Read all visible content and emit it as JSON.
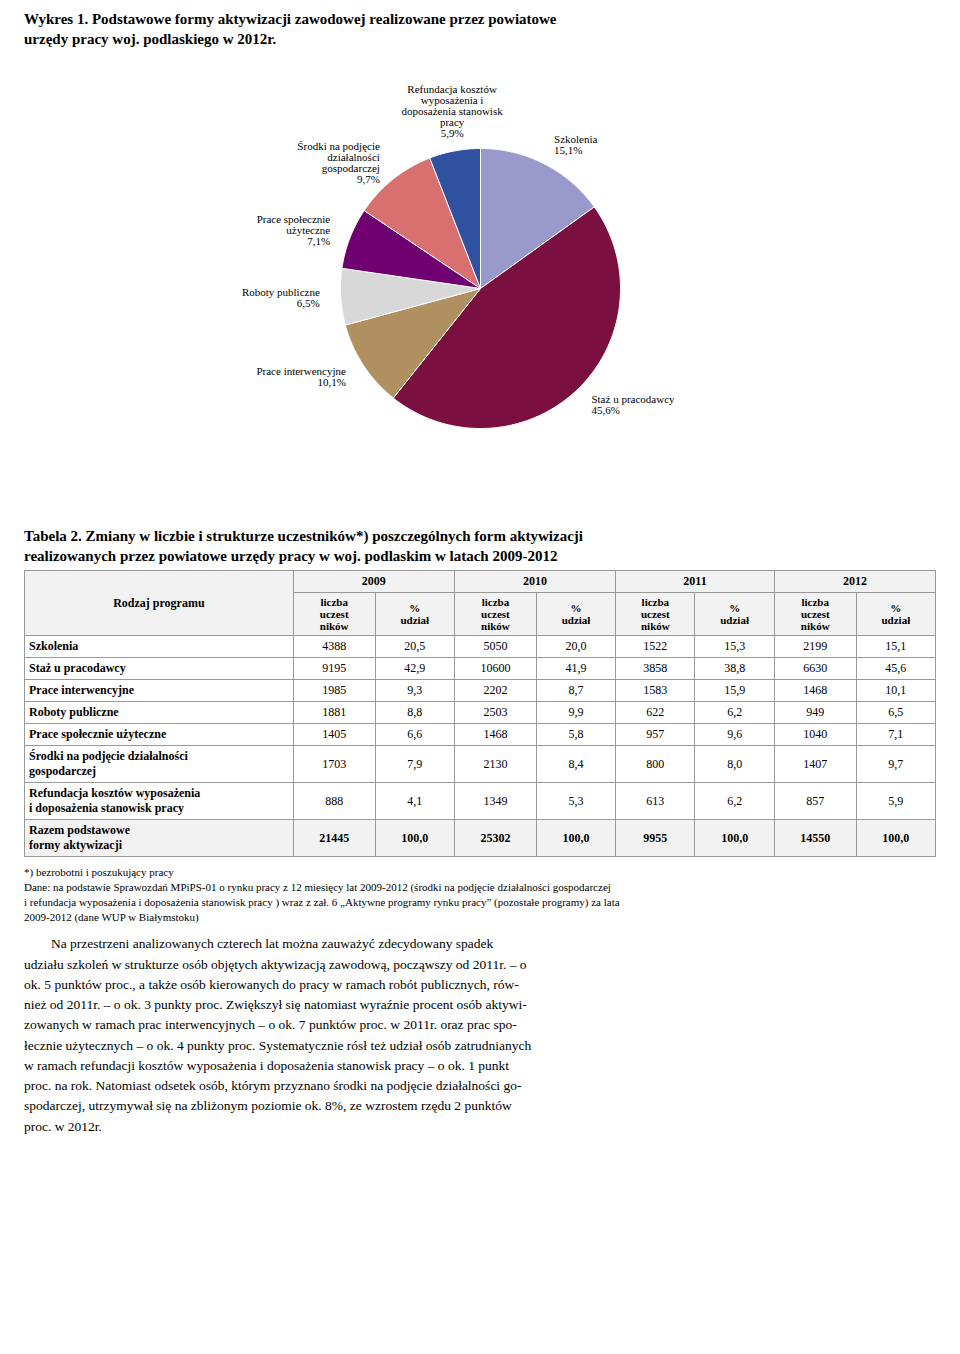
{
  "chart_data": {
    "type": "pie",
    "title": "Wykres 1. Podstawowe formy aktywizacji zawodowej realizowane przez powiatowe\nurzędy pracy woj. podlaskiego w 2012r.",
    "categories": [
      "Szkolenia",
      "Staż u pracodawcy",
      "Prace interwencyjne",
      "Roboty publiczne",
      "Prace społecznie\nużyteczne",
      "Środki na podjęcie\ndziałalności\ngospodarczej",
      "Refundacja kosztów\nwyposażenia i\ndoposażenia stanowisk\npracy"
    ],
    "values": [
      15.1,
      45.6,
      10.1,
      6.5,
      7.1,
      9.7,
      5.9
    ],
    "value_labels": [
      "15,1%",
      "45,6%",
      "10,1%",
      "6,5%",
      "7,1%",
      "9,7%",
      "5,9%"
    ],
    "colors": [
      "#9999cc",
      "#7a1040",
      "#b09060",
      "#d8d8d8",
      "#700070",
      "#d87070",
      "#3050a0"
    ],
    "data_labels": true
  },
  "table": {
    "title": "Tabela 2. Zmiany w liczbie i strukturze uczestników*) poszczególnych form aktywizacji\nrealizowanych przez powiatowe urzędy pracy w woj. podlaskim w latach 2009-2012",
    "header": "Rodzaj programu",
    "years": [
      "2009",
      "2010",
      "2011",
      "2012"
    ],
    "subheaders": [
      "liczba\nuczest\nników",
      "%\nudział"
    ],
    "rows": [
      [
        "Szkolenia",
        "4388",
        "20,5",
        "5050",
        "20,0",
        "1522",
        "15,3",
        "2199",
        "15,1"
      ],
      [
        "Staż u pracodawcy",
        "9195",
        "42,9",
        "10600",
        "41,9",
        "3858",
        "38,8",
        "6630",
        "45,6"
      ],
      [
        "Prace interwencyjne",
        "1985",
        "9,3",
        "2202",
        "8,7",
        "1583",
        "15,9",
        "1468",
        "10,1"
      ],
      [
        "Roboty publiczne",
        "1881",
        "8,8",
        "2503",
        "9,9",
        "622",
        "6,2",
        "949",
        "6,5"
      ],
      [
        "Prace społecznie użyteczne",
        "1405",
        "6,6",
        "1468",
        "5,8",
        "957",
        "9,6",
        "1040",
        "7,1"
      ],
      [
        "Środki na podjęcie działalności\ngospodarczej",
        "1703",
        "7,9",
        "2130",
        "8,4",
        "800",
        "8,0",
        "1407",
        "9,7"
      ],
      [
        "Refundacja kosztów wyposażenia\ni doposażenia stanowisk pracy",
        "888",
        "4,1",
        "1349",
        "5,3",
        "613",
        "6,2",
        "857",
        "5,9"
      ]
    ],
    "total_row": [
      "Razem podstawowe\nformy aktywizacji",
      "21445",
      "100,0",
      "25302",
      "100,0",
      "9955",
      "100,0",
      "14550",
      "100,0"
    ]
  },
  "footnotes": [
    "*) bezrobotni i poszukujący pracy",
    "Dane: na podstawie Sprawozdań MPiPS-01 o rynku pracy z 12 miesięcy lat 2009-2012 (środki na podjęcie działalności gospodarczej",
    "i refundacja wyposażenia i doposażenia stanowisk pracy ) wraz z zał. 6 „Aktywne programy rynku pracy” (pozostałe programy) za lata",
    "2009-2012 (dane WUP w Białymstoku)"
  ],
  "paragraph": [
    "        Na przestrzeni analizowanych czterech lat można zauważyć zdecydowany spadek",
    "udziału szkoleń w strukturze osób objętych aktywizacją zawodową, począwszy od 2011r. – o",
    "ok. 5 punktów proc., a także osób kierowanych do pracy w ramach robót publicznych, rów-",
    "nież od 2011r. – o ok. 3 punkty proc. Zwiększył się natomiast wyraźnie procent osób aktywi-",
    "zowanych w ramach prac interwencyjnych – o ok. 7 punktów proc. w 2011r. oraz prac spo-",
    "łecznie użytecznych – o ok. 4 punkty proc. Systematycznie rósł też udział osób zatrudnianych",
    "w ramach refundacji kosztów wyposażenia i doposażenia stanowisk pracy – o ok. 1 punkt",
    "proc. na rok. Natomiast odsetek osób, którym przyznano środki na podjęcie działalności go-",
    "spodarczej, utrzymywał się na zbliżonym poziomie ok. 8%, ze wzrostem rzędu 2 punktów",
    "proc. w 2012r."
  ]
}
